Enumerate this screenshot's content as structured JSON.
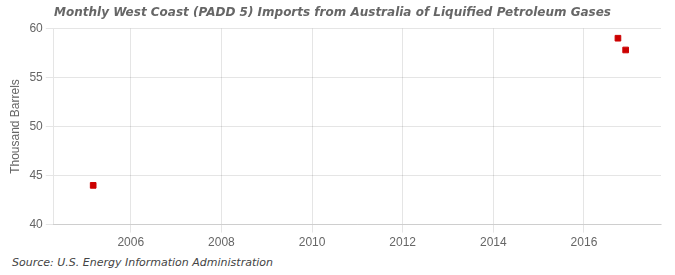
{
  "chart_data": {
    "type": "scatter",
    "title": "Monthly West Coast (PADD 5) Imports from Australia of Liquified Petroleum Gases",
    "ylabel": "Thousand Barrels",
    "annotations": [
      "Source: U.S. Energy Information Administration"
    ],
    "x": [
      2005.17,
      2016.75,
      2016.92
    ],
    "values": [
      44,
      59,
      57.8
    ],
    "color": "#cc0000",
    "marker": "square",
    "xlim": [
      2004.3,
      2017.7
    ],
    "ylim": [
      40,
      60
    ],
    "xticks": [
      2006,
      2008,
      2010,
      2012,
      2014,
      2016
    ],
    "yticks": [
      40,
      45,
      50,
      55,
      60
    ],
    "grid": true
  }
}
